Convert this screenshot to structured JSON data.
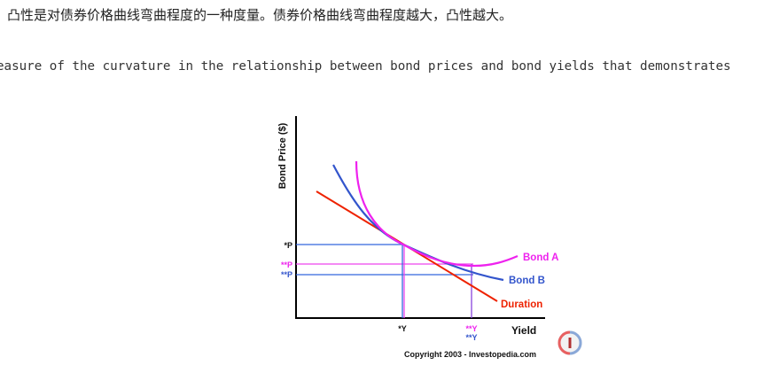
{
  "intro": {
    "chinese_sentence": "凸性是对债券价格曲线弯曲程度的一种度量。债券价格曲线弯曲程度越大，凸性越大。",
    "english_fragment": "easure of the curvature in the relationship between bond prices and bond yields that demonstrates"
  },
  "diagram": {
    "y_axis_label": "Bond Price ($)",
    "x_axis_label": "Yield",
    "price_ticks": [
      "*P",
      "**P",
      "**P"
    ],
    "yield_ticks": [
      "*Y",
      "**Y",
      "**Y"
    ],
    "curves": [
      {
        "name": "Bond A",
        "color": "#ee22ee"
      },
      {
        "name": "Bond B",
        "color": "#3355cc"
      },
      {
        "name": "Duration",
        "color": "#ee2200"
      }
    ],
    "guide_colors": {
      "blue": "#3366dd",
      "magenta": "#ee44ee",
      "purple": "#8844dd"
    },
    "copyright": "Copyright 2003 - Investopedia.com",
    "logo_icon": "investopedia-logo-icon"
  }
}
